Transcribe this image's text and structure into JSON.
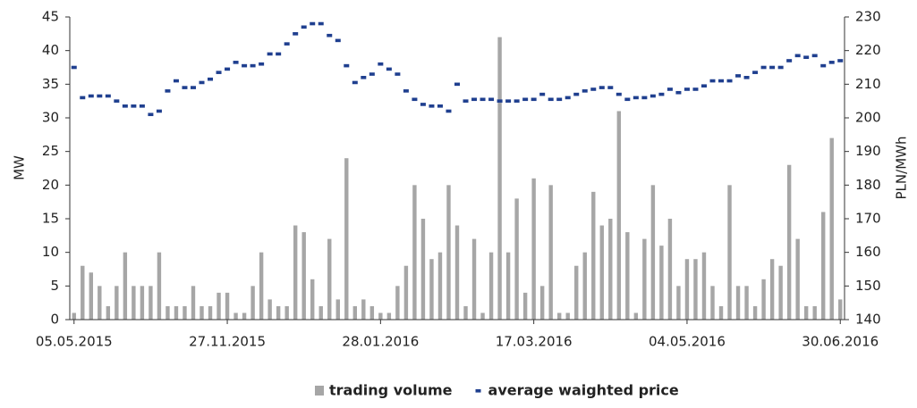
{
  "chart_data": {
    "type": "bar_line",
    "categories": [
      "05.05.2015",
      null,
      null,
      null,
      null,
      null,
      null,
      null,
      null,
      null,
      null,
      null,
      null,
      null,
      null,
      null,
      null,
      null,
      "27.11.2015",
      null,
      null,
      null,
      null,
      null,
      null,
      null,
      null,
      null,
      null,
      null,
      null,
      null,
      null,
      null,
      null,
      null,
      "28.01.2016",
      null,
      null,
      null,
      null,
      null,
      null,
      null,
      null,
      null,
      null,
      null,
      null,
      null,
      null,
      null,
      null,
      null,
      "17.03.2016",
      null,
      null,
      null,
      null,
      null,
      null,
      null,
      null,
      null,
      null,
      null,
      null,
      null,
      null,
      null,
      null,
      null,
      "04.05.2016",
      null,
      null,
      null,
      null,
      null,
      null,
      null,
      null,
      null,
      null,
      null,
      null,
      null,
      null,
      null,
      null,
      null,
      "30.06.2016"
    ],
    "series": [
      {
        "name": "trading volume",
        "type": "bar",
        "color": "#a6a6a6",
        "axis": "y",
        "values": [
          1,
          8,
          7,
          5,
          2,
          5,
          10,
          5,
          5,
          5,
          10,
          2,
          2,
          2,
          5,
          2,
          2,
          4,
          4,
          1,
          1,
          5,
          10,
          3,
          2,
          2,
          14,
          13,
          6,
          2,
          12,
          3,
          24,
          2,
          3,
          2,
          1,
          1,
          5,
          8,
          20,
          15,
          9,
          10,
          20,
          14,
          2,
          12,
          1,
          10,
          42,
          10,
          18,
          4,
          21,
          5,
          20,
          1,
          1,
          8,
          10,
          19,
          14,
          15,
          31,
          13,
          1,
          12,
          20,
          11,
          15,
          5,
          9,
          9,
          10,
          5,
          2,
          20,
          5,
          5,
          2,
          6,
          9,
          8,
          23,
          12,
          2,
          2,
          16,
          27,
          3
        ]
      },
      {
        "name": "average waighted price",
        "type": "dash",
        "color": "#1f3f8f",
        "axis": "y2",
        "values": [
          215,
          206,
          206.5,
          206.5,
          206.5,
          205,
          203.5,
          203.5,
          203.5,
          201,
          202,
          208,
          211,
          209,
          209,
          210.5,
          211.5,
          213.5,
          214.5,
          216.5,
          215.5,
          215.5,
          216,
          219,
          219,
          222,
          225,
          227,
          228,
          228,
          224.5,
          223,
          215.5,
          210.5,
          212,
          213,
          216,
          214.5,
          213,
          208,
          205.5,
          204,
          203.5,
          203.5,
          202,
          210,
          205,
          205.5,
          205.5,
          205.5,
          205,
          205,
          205,
          205.5,
          205.5,
          207,
          205.5,
          205.5,
          206,
          207,
          208,
          208.5,
          209,
          209,
          207,
          205.5,
          206,
          206,
          206.5,
          207,
          208.5,
          207.5,
          208.5,
          208.5,
          209.5,
          211,
          211,
          211,
          212.5,
          212,
          213.5,
          215,
          215,
          215,
          217,
          218.5,
          218,
          218.5,
          215.5,
          216.5,
          217
        ]
      }
    ],
    "ylabel": "MW",
    "y2label": "PLN/MWh",
    "ylim": [
      0,
      45
    ],
    "yticks": [
      0,
      5,
      10,
      15,
      20,
      25,
      30,
      35,
      40,
      45
    ],
    "y2lim": [
      140,
      230
    ],
    "y2ticks": [
      140,
      150,
      160,
      170,
      180,
      190,
      200,
      210,
      220,
      230
    ],
    "legend": "bottom"
  }
}
